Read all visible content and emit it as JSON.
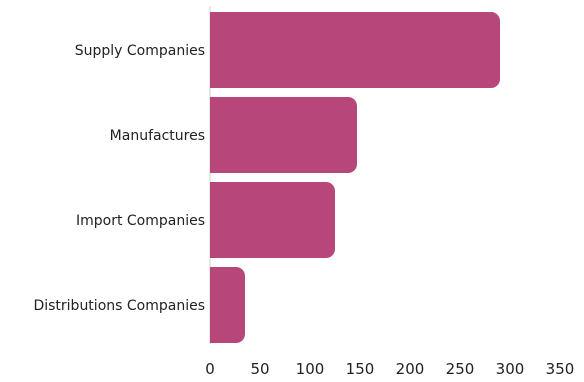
{
  "chart_data": {
    "type": "bar",
    "orientation": "horizontal",
    "categories": [
      "Supply Companies",
      "Manufactures",
      "Import Companies",
      "Distributions Companies"
    ],
    "values": [
      290,
      147,
      125,
      35
    ],
    "xlim": [
      0,
      350
    ],
    "x_ticks": [
      0,
      50,
      100,
      150,
      200,
      250,
      300,
      350
    ],
    "title": "",
    "xlabel": "",
    "ylabel": "",
    "grid": false,
    "legend": "none",
    "bar_color": "#b7477a"
  }
}
